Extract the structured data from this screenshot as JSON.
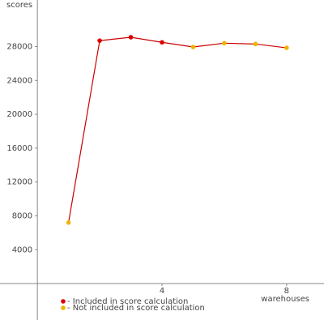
{
  "chart_data": {
    "type": "line",
    "y_label": "scores",
    "x_label": "warehouses",
    "x": [
      1,
      2,
      3,
      4,
      5,
      6,
      7,
      8
    ],
    "series": [
      {
        "color": "#cc0000",
        "values": [
          7200,
          28700,
          29100,
          28500,
          27950,
          28400,
          28300,
          27850
        ]
      }
    ],
    "point_legend": [
      1,
      0,
      0,
      0,
      1,
      1,
      1,
      1
    ],
    "legend": [
      {
        "label": "- Included in score calculation",
        "color": "#dd0000"
      },
      {
        "label": "- Not included in score calculation",
        "color": "#f0b400"
      }
    ],
    "xlim": [
      -1.2,
      9.2
    ],
    "ylim": [
      -4300,
      33500
    ],
    "xticks": [
      4,
      8
    ],
    "yticks": [
      4000,
      8000,
      12000,
      16000,
      20000,
      24000,
      28000
    ]
  }
}
